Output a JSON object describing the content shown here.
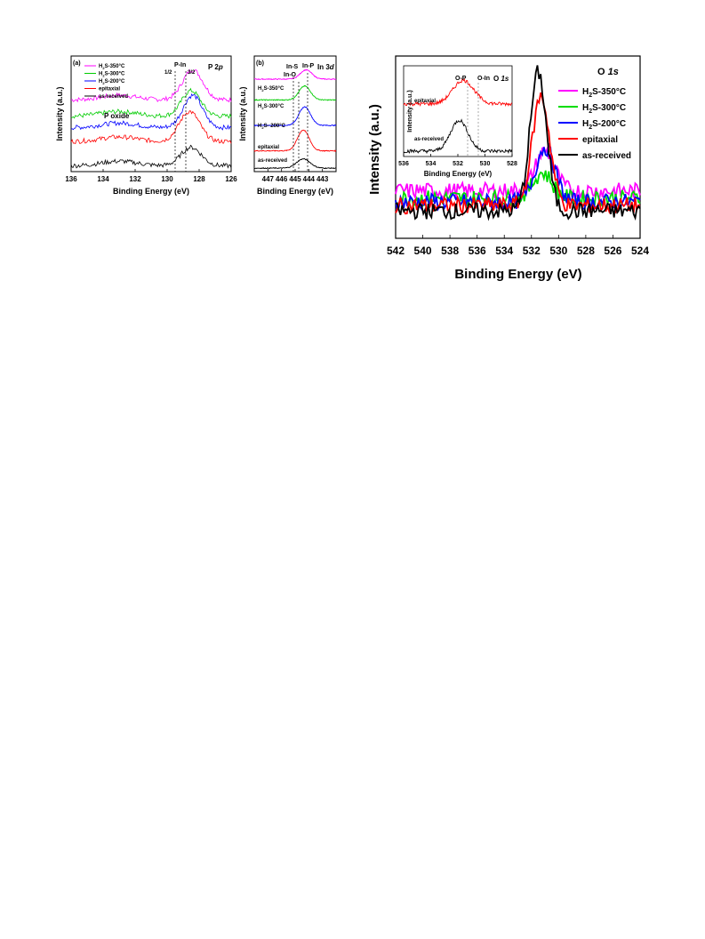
{
  "chart_data": [
    {
      "type": "line",
      "panel_label": "(a)",
      "core_level": "P 2p",
      "xlabel": "Binding Energy (eV)",
      "ylabel": "Intensity (a.u.)",
      "xlim": [
        136,
        126
      ],
      "x_ticks": [
        "136",
        "134",
        "132",
        "130",
        "128",
        "126"
      ],
      "annotations": [
        "P-In",
        "1/2",
        "3/2",
        "P oxide"
      ],
      "legend_placement": "top-left",
      "series": [
        {
          "name": "H2S-350°C",
          "label_main": "H",
          "label_sub": "2",
          "label_rest": "S-350°C",
          "color": "#ff00ff",
          "baseline": 62,
          "peak_center": 128.4,
          "peak_height": 26,
          "peak_width": 0.9
        },
        {
          "name": "H2S-300°C",
          "label_main": "H",
          "label_sub": "2",
          "label_rest": "S-300°C",
          "color": "#00cc00",
          "baseline": 48,
          "peak_center": 128.5,
          "peak_height": 22,
          "peak_width": 0.85
        },
        {
          "name": "H2S-200°C",
          "label_main": "H",
          "label_sub": "2",
          "label_rest": "S-200°C",
          "color": "#0000ff",
          "baseline": 38,
          "peak_center": 128.4,
          "peak_height": 28,
          "peak_width": 0.85
        },
        {
          "name": "epitaxial",
          "color": "#ff0000",
          "baseline": 26,
          "peak_center": 128.6,
          "peak_height": 26,
          "peak_width": 0.9
        },
        {
          "name": "as-received",
          "color": "#000000",
          "baseline": 5,
          "peak_center": 128.5,
          "peak_height": 16,
          "peak_width": 0.9
        }
      ]
    },
    {
      "type": "line",
      "panel_label": "(b)",
      "core_level": "In 3d",
      "xlabel": "Binding Energy (eV)",
      "ylabel": "Intensity (a.u.)",
      "xlim": [
        448,
        442
      ],
      "x_ticks": [
        "447",
        "446",
        "445",
        "444",
        "443"
      ],
      "annotations": [
        "In-S",
        "In-O",
        "In-P"
      ],
      "series": [
        {
          "name": "H2S-350°C",
          "label_main": "H",
          "label_sub": "2",
          "label_rest": "S-350°C",
          "color": "#ff00ff",
          "baseline": 80,
          "peak_center": 444.2,
          "peak_height": 8,
          "peak_width": 0.6
        },
        {
          "name": "H2S-300°C",
          "label_main": "H",
          "label_sub": "2",
          "label_rest": "S-300°C",
          "color": "#00cc00",
          "baseline": 62,
          "peak_center": 444.3,
          "peak_height": 12,
          "peak_width": 0.6
        },
        {
          "name": "H2S- 200°C",
          "label_main": "H",
          "label_sub": "2",
          "label_rest": "S- 200°C",
          "color": "#0000ff",
          "baseline": 40,
          "peak_center": 444.3,
          "peak_height": 16,
          "peak_width": 0.6
        },
        {
          "name": "epitaxial",
          "color": "#ff0000",
          "baseline": 18,
          "peak_center": 444.4,
          "peak_height": 18,
          "peak_width": 0.6
        },
        {
          "name": "as-received",
          "color": "#000000",
          "baseline": 3,
          "peak_center": 444.4,
          "peak_height": 8,
          "peak_width": 0.7
        }
      ]
    },
    {
      "type": "line",
      "core_level": "O 1s",
      "xlabel": "Binding Energy (eV)",
      "ylabel": "Intensity (a.u.)",
      "xlim": [
        542,
        524
      ],
      "x_ticks": [
        "542",
        "540",
        "538",
        "536",
        "534",
        "532",
        "530",
        "528",
        "526",
        "524"
      ],
      "legend_placement": "top-right",
      "series": [
        {
          "name": "H2S-350°C",
          "label_main": "H",
          "label_sub": "2",
          "label_rest": "S-350°C",
          "color": "#ff00ff",
          "baseline": 26,
          "peak_center": 531.0,
          "peak_height": 22,
          "peak_width": 1.0
        },
        {
          "name": "H2S-300°C",
          "label_main": "H",
          "label_sub": "2",
          "label_rest": "S-300°C",
          "color": "#00dd00",
          "baseline": 22,
          "peak_center": 531.2,
          "peak_height": 14,
          "peak_width": 1.0
        },
        {
          "name": "H2S-200°C",
          "label_main": "H",
          "label_sub": "2",
          "label_rest": "S-200°C",
          "color": "#0000ff",
          "baseline": 20,
          "peak_center": 531.0,
          "peak_height": 30,
          "peak_width": 1.0
        },
        {
          "name": "epitaxial",
          "color": "#ff0000",
          "baseline": 18,
          "peak_center": 531.3,
          "peak_height": 60,
          "peak_width": 0.9
        },
        {
          "name": "as-received",
          "color": "#000000",
          "baseline": 15,
          "peak_center": 531.5,
          "peak_height": 76,
          "peak_width": 0.85
        }
      ],
      "inset": {
        "xlabel": "Binding Energy (eV)",
        "ylabel": "Intensity (a.u.)",
        "core_level": "O 1s",
        "xlim": [
          536,
          528
        ],
        "x_ticks": [
          "536",
          "534",
          "532",
          "530",
          "528"
        ],
        "annotations": [
          "O-P",
          "O-In"
        ],
        "series": [
          {
            "name": "epitaxial",
            "color": "#ff0000",
            "baseline": 58,
            "peak_center": 531.6,
            "peak_height": 26,
            "peak_width": 1.1
          },
          {
            "name": "as-received",
            "color": "#000000",
            "baseline": 6,
            "peak_center": 531.9,
            "peak_height": 34,
            "peak_width": 0.9
          }
        ]
      }
    }
  ]
}
